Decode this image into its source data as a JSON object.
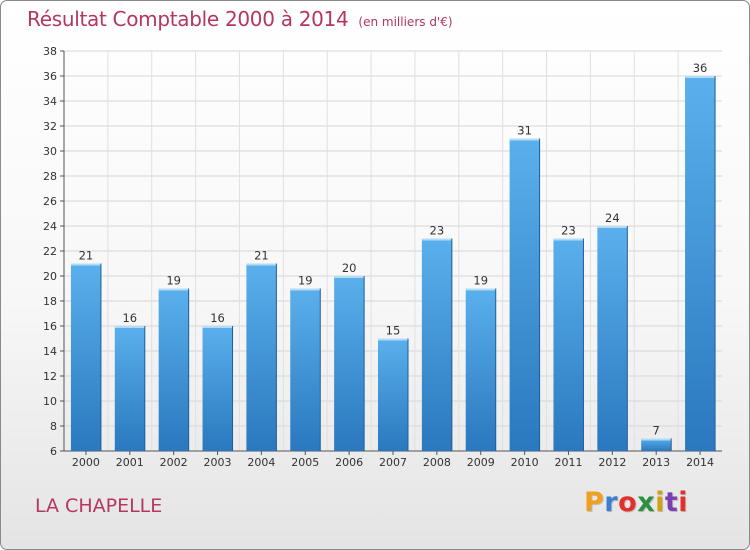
{
  "chart_data": {
    "type": "bar",
    "title": "Résultat Comptable 2000 à 2014",
    "subtitle": "(en milliers d'€)",
    "categories": [
      "2000",
      "2001",
      "2002",
      "2003",
      "2004",
      "2005",
      "2006",
      "2007",
      "2008",
      "2009",
      "2010",
      "2011",
      "2012",
      "2013",
      "2014"
    ],
    "values": [
      21,
      16,
      19,
      16,
      21,
      19,
      20,
      15,
      23,
      19,
      31,
      23,
      24,
      7,
      36
    ],
    "xlabel": "",
    "ylabel": "",
    "ylim": [
      6,
      38
    ],
    "yticks": [
      6,
      8,
      10,
      12,
      14,
      16,
      18,
      20,
      22,
      24,
      26,
      28,
      30,
      32,
      34,
      36,
      38
    ],
    "grid": true,
    "bar_color": "#3d8fd6"
  },
  "footer": {
    "commune": "LA CHAPELLE",
    "brand": "Proxiti",
    "brand_letters": [
      "P",
      "r",
      "o",
      "x",
      "i",
      "t",
      "i"
    ],
    "brand_colors": [
      "#f0a01e",
      "#3b7fd1",
      "#e2312c",
      "#2a8f3e",
      "#d4a017",
      "#7a3fb3",
      "#e2312c"
    ]
  }
}
